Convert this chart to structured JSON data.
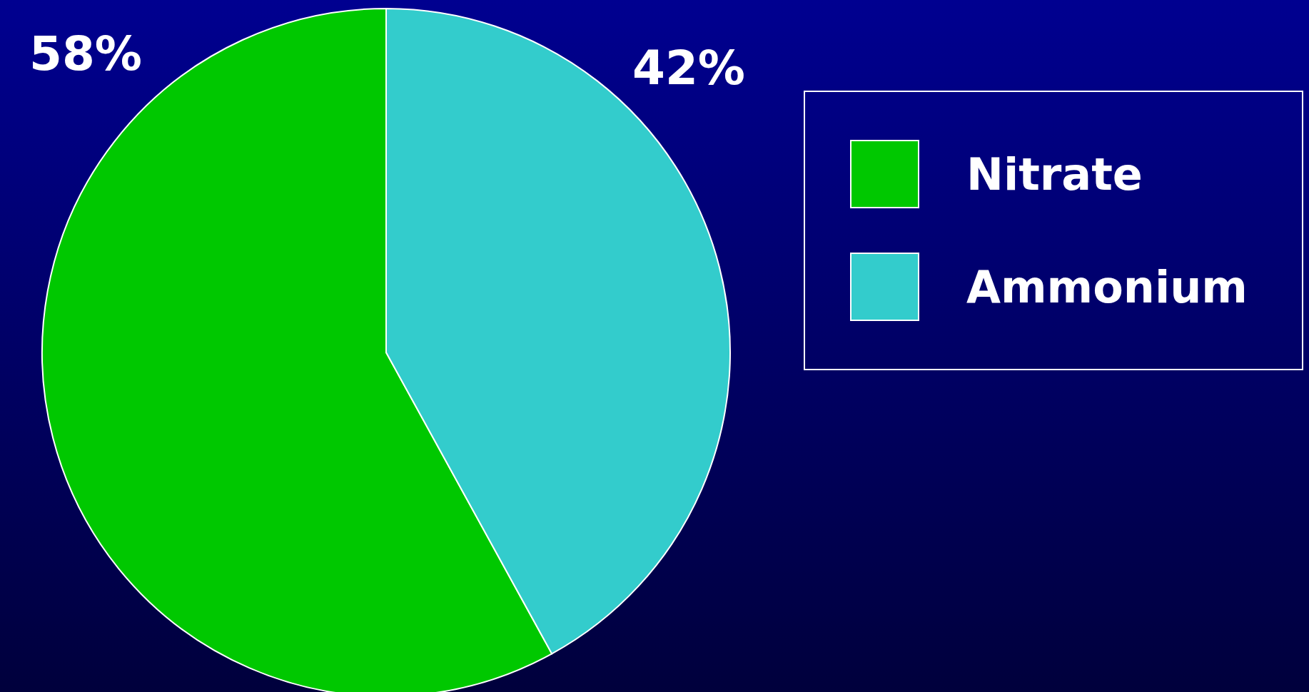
{
  "chart_data": {
    "type": "pie",
    "categories": [
      "Nitrate",
      "Ammonium"
    ],
    "values": [
      58,
      42
    ],
    "colors": [
      "#00c800",
      "#33cccc"
    ],
    "value_labels": [
      "58%",
      "42%"
    ],
    "legend": "right"
  }
}
